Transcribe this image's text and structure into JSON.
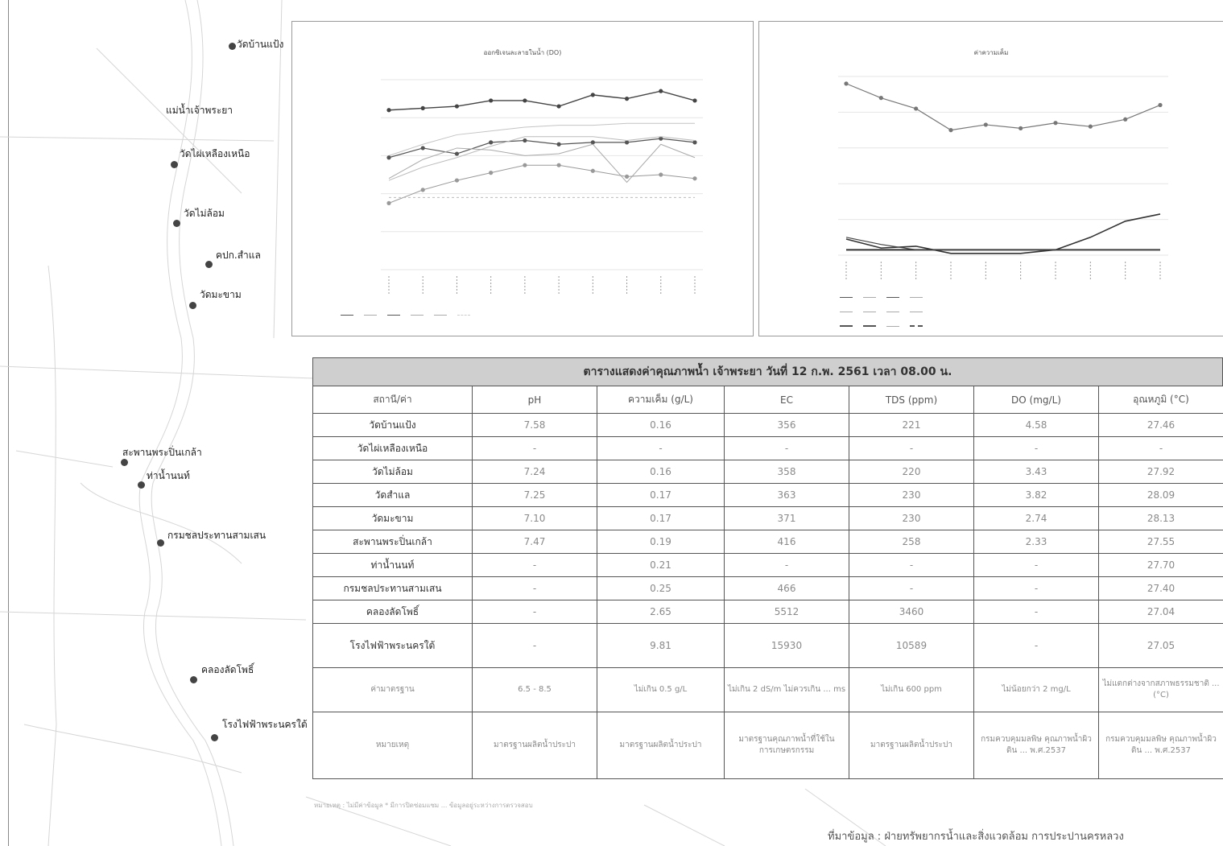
{
  "map": {
    "stations": [
      {
        "id": "wat-ban-phaeng",
        "label": "วัดบ้านแป้ง"
      },
      {
        "id": "mae-nam-chaophraya",
        "label": "แม่น้ำเจ้าพระยา"
      },
      {
        "id": "wat-phai-lueang-nuea",
        "label": "วัดไผ่เหลืองเหนือ"
      },
      {
        "id": "wat-mai-lom",
        "label": "วัดไม่ล้อม"
      },
      {
        "id": "wat-sam-lae",
        "label": "คปก.สำแล"
      },
      {
        "id": "wat-makham",
        "label": "วัดมะขาม"
      },
      {
        "id": "saphan-phra-pin-klao",
        "label": "สะพานพระปิ่นเกล้า"
      },
      {
        "id": "tha-nam-nonthaburi",
        "label": "ท่าน้ำนนท์"
      },
      {
        "id": "krom-chonprathan",
        "label": "กรมชลประทานสามเสน"
      },
      {
        "id": "khlong-lat-pho",
        "label": "คลองลัดโพธิ์"
      },
      {
        "id": "rong-fai-fa",
        "label": "โรงไฟฟ้าพระนครใต้"
      }
    ]
  },
  "chart_left": {
    "chart_data": {
      "type": "line",
      "title": "ออกซิเจนละลายในน้ำ (DO)",
      "ylim": [
        -1,
        4
      ],
      "x_count": 10,
      "series": [
        {
          "values": [
            3.2,
            3.25,
            3.3,
            3.45,
            3.45,
            3.3,
            3.6,
            3.5,
            3.7,
            3.45
          ]
        },
        {
          "values": [
            2.0,
            2.3,
            2.55,
            2.65,
            2.75,
            2.8,
            2.8,
            2.85,
            2.85,
            2.85
          ]
        },
        {
          "values": [
            1.95,
            2.2,
            2.05,
            2.35,
            2.4,
            2.3,
            2.35,
            2.35,
            2.45,
            2.35
          ]
        },
        {
          "values": [
            1.35,
            1.7,
            1.95,
            2.25,
            2.5,
            2.5,
            2.5,
            2.4,
            2.5,
            2.4
          ]
        },
        {
          "values": [
            1.4,
            1.9,
            2.2,
            2.15,
            2.0,
            2.05,
            2.3,
            1.3,
            2.3,
            1.95
          ]
        },
        {
          "values": [
            0.75,
            1.1,
            1.35,
            1.55,
            1.75,
            1.75,
            1.6,
            1.45,
            1.5,
            1.4
          ]
        },
        {
          "values": [
            0.9,
            0.9,
            0.9,
            0.9,
            0.9,
            0.9,
            0.9,
            0.9,
            0.9,
            0.9
          ]
        }
      ]
    }
  },
  "chart_right": {
    "chart_data": {
      "type": "line",
      "title": "ค่าความเค็ม",
      "x_count": 10,
      "series": [
        {
          "values": [
            9.6,
            8.8,
            8.2,
            7.0,
            7.3,
            7.1,
            7.4,
            7.2,
            7.6,
            8.4
          ]
        },
        {
          "values": [
            0.9,
            0.4,
            0.5,
            0.1,
            0.1,
            0.1,
            0.3,
            1.0,
            1.9,
            2.3
          ]
        },
        {
          "values": [
            0.3,
            0.3,
            0.3,
            0.3,
            0.3,
            0.3,
            0.3,
            0.3,
            0.3,
            0.3
          ]
        },
        {
          "values": [
            1.0,
            0.6,
            0.3,
            0.3,
            0.3,
            0.3,
            0.3,
            0.3,
            0.3,
            0.3
          ]
        }
      ]
    }
  },
  "table": {
    "title": "ตารางแสดงค่าคุณภาพน้ำ เจ้าพระยา วันที่ 12 ก.พ. 2561 เวลา 08.00 น.",
    "headers": [
      "สถานี/ค่า",
      "pH",
      "ความเค็ม (g/L)",
      "EC",
      "TDS (ppm)",
      "DO (mg/L)",
      "อุณหภูมิ (°C)"
    ],
    "rows": [
      [
        "วัดบ้านแป้ง",
        "7.58",
        "0.16",
        "356",
        "221",
        "4.58",
        "27.46"
      ],
      [
        "วัดไผ่เหลืองเหนือ",
        "-",
        "-",
        "-",
        "-",
        "-",
        "-"
      ],
      [
        "วัดไม่ล้อม",
        "7.24",
        "0.16",
        "358",
        "220",
        "3.43",
        "27.92"
      ],
      [
        "วัดสำแล",
        "7.25",
        "0.17",
        "363",
        "230",
        "3.82",
        "28.09"
      ],
      [
        "วัดมะขาม",
        "7.10",
        "0.17",
        "371",
        "230",
        "2.74",
        "28.13"
      ],
      [
        "สะพานพระปิ่นเกล้า",
        "7.47",
        "0.19",
        "416",
        "258",
        "2.33",
        "27.55"
      ],
      [
        "ท่าน้ำนนท์",
        "-",
        "0.21",
        "-",
        "-",
        "-",
        "27.70"
      ],
      [
        "กรมชลประทานสามเสน",
        "-",
        "0.25",
        "466",
        "-",
        "-",
        "27.40"
      ],
      [
        "คลองลัดโพธิ์",
        "-",
        "2.65",
        "5512",
        "3460",
        "-",
        "27.04"
      ],
      [
        "โรงไฟฟ้าพระนครใต้",
        "-",
        "9.81",
        "15930",
        "10589",
        "-",
        "27.05"
      ]
    ],
    "standard": [
      "ค่ามาตรฐาน",
      "6.5 - 8.5",
      "ไม่เกิน 0.5 g/L",
      "ไม่เกิน 2 dS/m ไม่ควรเกิน ... ms",
      "ไม่เกิน 600 ppm",
      "ไม่น้อยกว่า 2 mg/L",
      "ไม่แตกต่างจากสภาพธรรมชาติ ... (°C)"
    ],
    "remark": [
      "หมายเหตุ",
      "มาตรฐานผลิตน้ำประปา",
      "มาตรฐานผลิตน้ำประปา",
      "มาตรฐานคุณภาพน้ำที่ใช้ในการเกษตรกรรม",
      "มาตรฐานผลิตน้ำประปา",
      "กรมควบคุมมลพิษ คุณภาพน้ำผิวดิน ... พ.ศ.2537",
      "กรมควบคุมมลพิษ คุณภาพน้ำผิวดิน ... พ.ศ.2537"
    ]
  },
  "footnote": "หมายเหตุ : ไม่มีค่าข้อมูล * มีการปิดซ่อมแซม ... ข้อมูลอยู่ระหว่างการตรวจสอบ",
  "source": "ที่มาข้อมูล : ฝ่ายทรัพยากรน้ำและสิ่งแวดล้อม การประปานครหลวง",
  "colors": {
    "grid": "#e6e6e6",
    "line_dark": "#444444",
    "line_light": "#bfbfbf",
    "header_bg": "#cfcfcf"
  }
}
